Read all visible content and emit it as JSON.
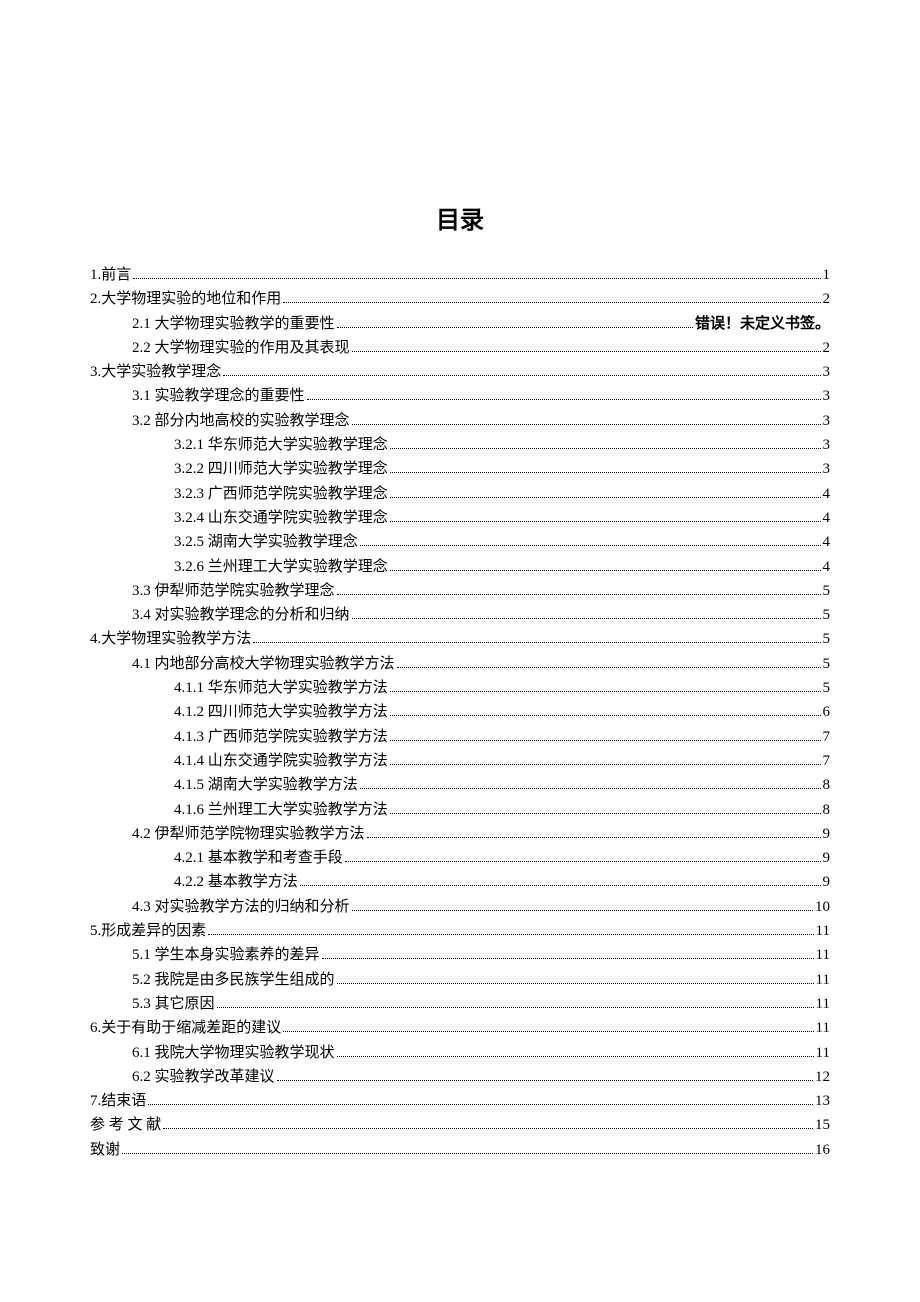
{
  "title": "目录",
  "error_text": "错误！未定义书签。",
  "entries": [
    {
      "level": 1,
      "text": "1.前言",
      "page": "1",
      "error": false
    },
    {
      "level": 1,
      "text": "2.大学物理实验的地位和作用",
      "page": "2",
      "error": false
    },
    {
      "level": 2,
      "text": "2.1 大学物理实验教学的重要性 ",
      "page": "",
      "error": true
    },
    {
      "level": 2,
      "text": "2.2 大学物理实验的作用及其表现",
      "page": "2",
      "error": false
    },
    {
      "level": 1,
      "text": "3.大学实验教学理念",
      "page": "3",
      "error": false
    },
    {
      "level": 2,
      "text": "3.1 实验教学理念的重要性",
      "page": "3",
      "error": false
    },
    {
      "level": 2,
      "text": "3.2 部分内地高校的实验教学理念",
      "page": "3",
      "error": false
    },
    {
      "level": 3,
      "text": "3.2.1 华东师范大学实验教学理念",
      "page": "3",
      "error": false
    },
    {
      "level": 3,
      "text": "3.2.2 四川师范大学实验教学理念",
      "page": "3",
      "error": false
    },
    {
      "level": 3,
      "text": "3.2.3 广西师范学院实验教学理念",
      "page": "4",
      "error": false
    },
    {
      "level": 3,
      "text": "3.2.4 山东交通学院实验教学理念",
      "page": "4",
      "error": false
    },
    {
      "level": 3,
      "text": "3.2.5 湖南大学实验教学理念",
      "page": "4",
      "error": false
    },
    {
      "level": 3,
      "text": "3.2.6 兰州理工大学实验教学理念",
      "page": "4",
      "error": false
    },
    {
      "level": 2,
      "text": "3.3 伊犁师范学院实验教学理念",
      "page": "5",
      "error": false
    },
    {
      "level": 2,
      "text": "3.4 对实验教学理念的分析和归纳",
      "page": "5",
      "error": false
    },
    {
      "level": 1,
      "text": "4.大学物理实验教学方法",
      "page": "5",
      "error": false
    },
    {
      "level": 2,
      "text": "4.1 内地部分高校大学物理实验教学方法",
      "page": "5",
      "error": false
    },
    {
      "level": 3,
      "text": "4.1.1 华东师范大学实验教学方法",
      "page": "5",
      "error": false
    },
    {
      "level": 3,
      "text": "4.1.2 四川师范大学实验教学方法",
      "page": "6",
      "error": false
    },
    {
      "level": 3,
      "text": "4.1.3 广西师范学院实验教学方法",
      "page": "7",
      "error": false
    },
    {
      "level": 3,
      "text": "4.1.4 山东交通学院实验教学方法",
      "page": "7",
      "error": false
    },
    {
      "level": 3,
      "text": "4.1.5 湖南大学实验教学方法",
      "page": "8",
      "error": false
    },
    {
      "level": 3,
      "text": "4.1.6 兰州理工大学实验教学方法",
      "page": "8",
      "error": false
    },
    {
      "level": 2,
      "text": "4.2 伊犁师范学院物理实验教学方法",
      "page": "9",
      "error": false
    },
    {
      "level": 3,
      "text": "4.2.1 基本教学和考查手段",
      "page": "9",
      "error": false
    },
    {
      "level": 3,
      "text": "4.2.2 基本教学方法",
      "page": "9",
      "error": false
    },
    {
      "level": 2,
      "text": "4.3 对实验教学方法的归纳和分析",
      "page": "10",
      "error": false
    },
    {
      "level": 1,
      "text": "5.形成差异的因素",
      "page": "11",
      "error": false
    },
    {
      "level": 2,
      "text": "5.1 学生本身实验素养的差异",
      "page": "11",
      "error": false
    },
    {
      "level": 2,
      "text": "5.2 我院是由多民族学生组成的",
      "page": "11",
      "error": false
    },
    {
      "level": 2,
      "text": "5.3 其它原因",
      "page": "11",
      "error": false
    },
    {
      "level": 1,
      "text": "6.关于有助于缩减差距的建议",
      "page": "11",
      "error": false
    },
    {
      "level": 2,
      "text": "6.1 我院大学物理实验教学现状",
      "page": "11",
      "error": false
    },
    {
      "level": 2,
      "text": "6.2 实验教学改革建议",
      "page": "12",
      "error": false
    },
    {
      "level": 1,
      "text": "7.结束语",
      "page": "13",
      "error": false
    },
    {
      "level": 1,
      "text": "参 考 文 献",
      "page": "15",
      "error": false
    },
    {
      "level": 1,
      "text": "致谢",
      "page": "16",
      "error": false
    }
  ]
}
